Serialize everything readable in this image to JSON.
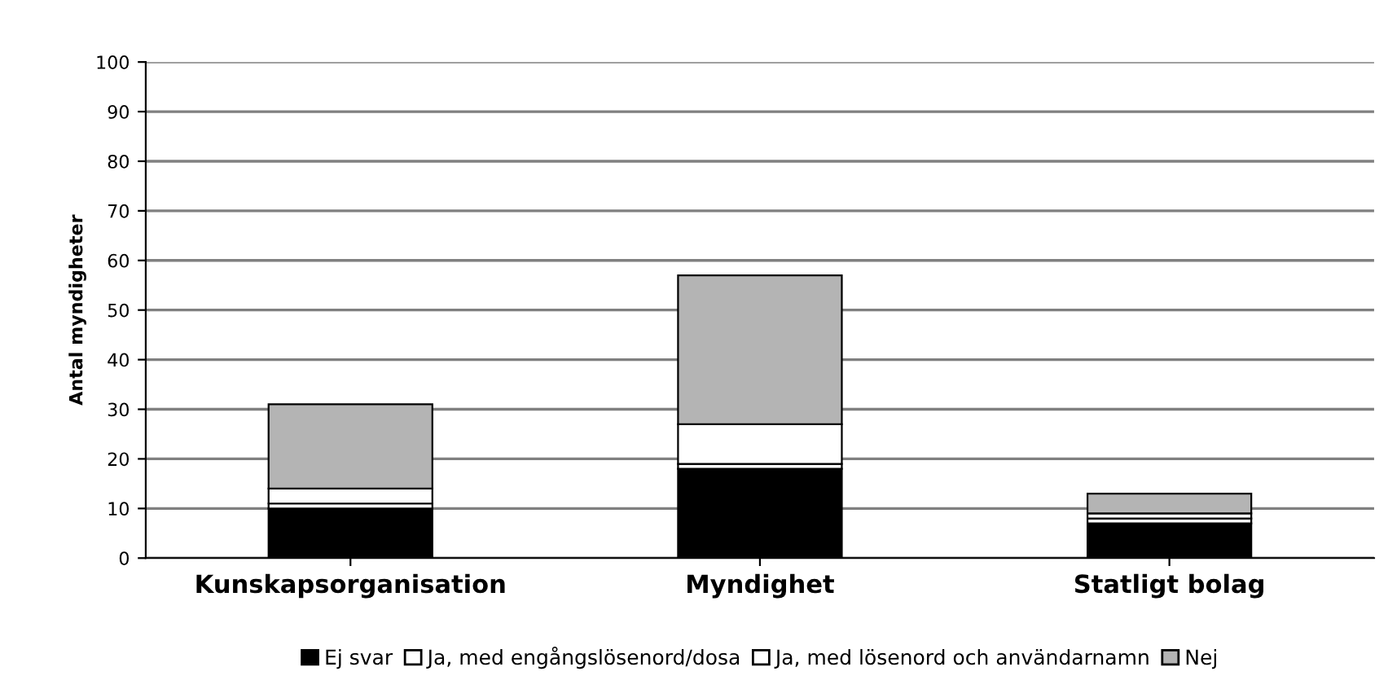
{
  "chart_data": {
    "type": "bar",
    "stacked": true,
    "ylabel": "Antal myndigheter",
    "categories": [
      "Kunskapsorganisation",
      "Myndighet",
      "Statligt bolag"
    ],
    "series": [
      {
        "name": "Ej svar",
        "color": "#000000",
        "values": [
          10,
          18,
          7
        ]
      },
      {
        "name": "Ja, med engångslösenord/dosa",
        "color": "#ffffff",
        "values": [
          1,
          1,
          1
        ]
      },
      {
        "name": "Ja, med lösenord och användarnamn",
        "color": "#ffffff",
        "values": [
          3,
          8,
          1
        ]
      },
      {
        "name": "Nej",
        "color": "#b4b4b4",
        "values": [
          17,
          30,
          4
        ]
      }
    ],
    "ylim": [
      0,
      100
    ],
    "yticks": [
      0,
      10,
      20,
      30,
      40,
      50,
      60,
      70,
      80,
      90,
      100
    ],
    "grid": "y",
    "legend": "bottom"
  }
}
